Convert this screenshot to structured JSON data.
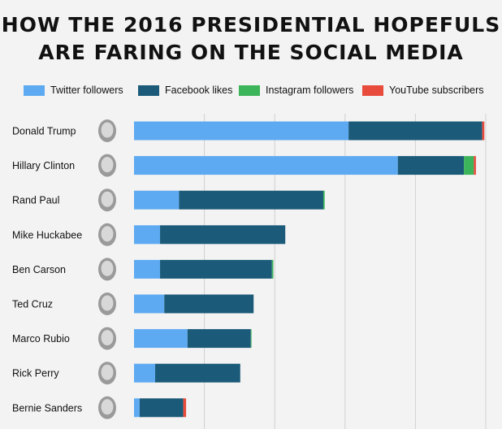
{
  "title_lines": [
    "HOW THE 2016 PRESIDENTIAL HOPEFULS",
    "ARE FARING ON THE SOCIAL MEDIA"
  ],
  "chart_data": {
    "type": "bar",
    "orientation": "horizontal",
    "stacked": true,
    "title": "HOW THE 2016 PRESIDENTIAL HOPEFULS ARE FARING ON THE SOCIAL MEDIA",
    "categories": [
      "Donald Trump",
      "Hillary Clinton",
      "Rand Paul",
      "Mike Huckabee",
      "Ben Carson",
      "Ted Cruz",
      "Marco Rubio",
      "Rick Perry",
      "Bernie Sanders"
    ],
    "series": [
      {
        "name": "Twitter followers",
        "color": "#5eaaf2",
        "values": [
          3.05,
          3.75,
          0.64,
          0.37,
          0.37,
          0.43,
          0.76,
          0.3,
          0.08
        ]
      },
      {
        "name": "Facebook likes",
        "color": "#1b5a78",
        "values": [
          1.9,
          0.94,
          2.05,
          1.78,
          1.59,
          1.27,
          0.9,
          1.21,
          0.62
        ]
      },
      {
        "name": "Instagram followers",
        "color": "#3cb55a",
        "values": [
          0.0,
          0.14,
          0.02,
          0.0,
          0.02,
          0.0,
          0.01,
          0.0,
          0.0
        ]
      },
      {
        "name": "YouTube subscribers",
        "color": "#e84a3c",
        "values": [
          0.03,
          0.03,
          0.0,
          0.0,
          0.0,
          0.0,
          0.0,
          0.0,
          0.04
        ]
      }
    ],
    "xlim": [
      0,
      5.0
    ],
    "grid": true,
    "legend_position": "top"
  }
}
